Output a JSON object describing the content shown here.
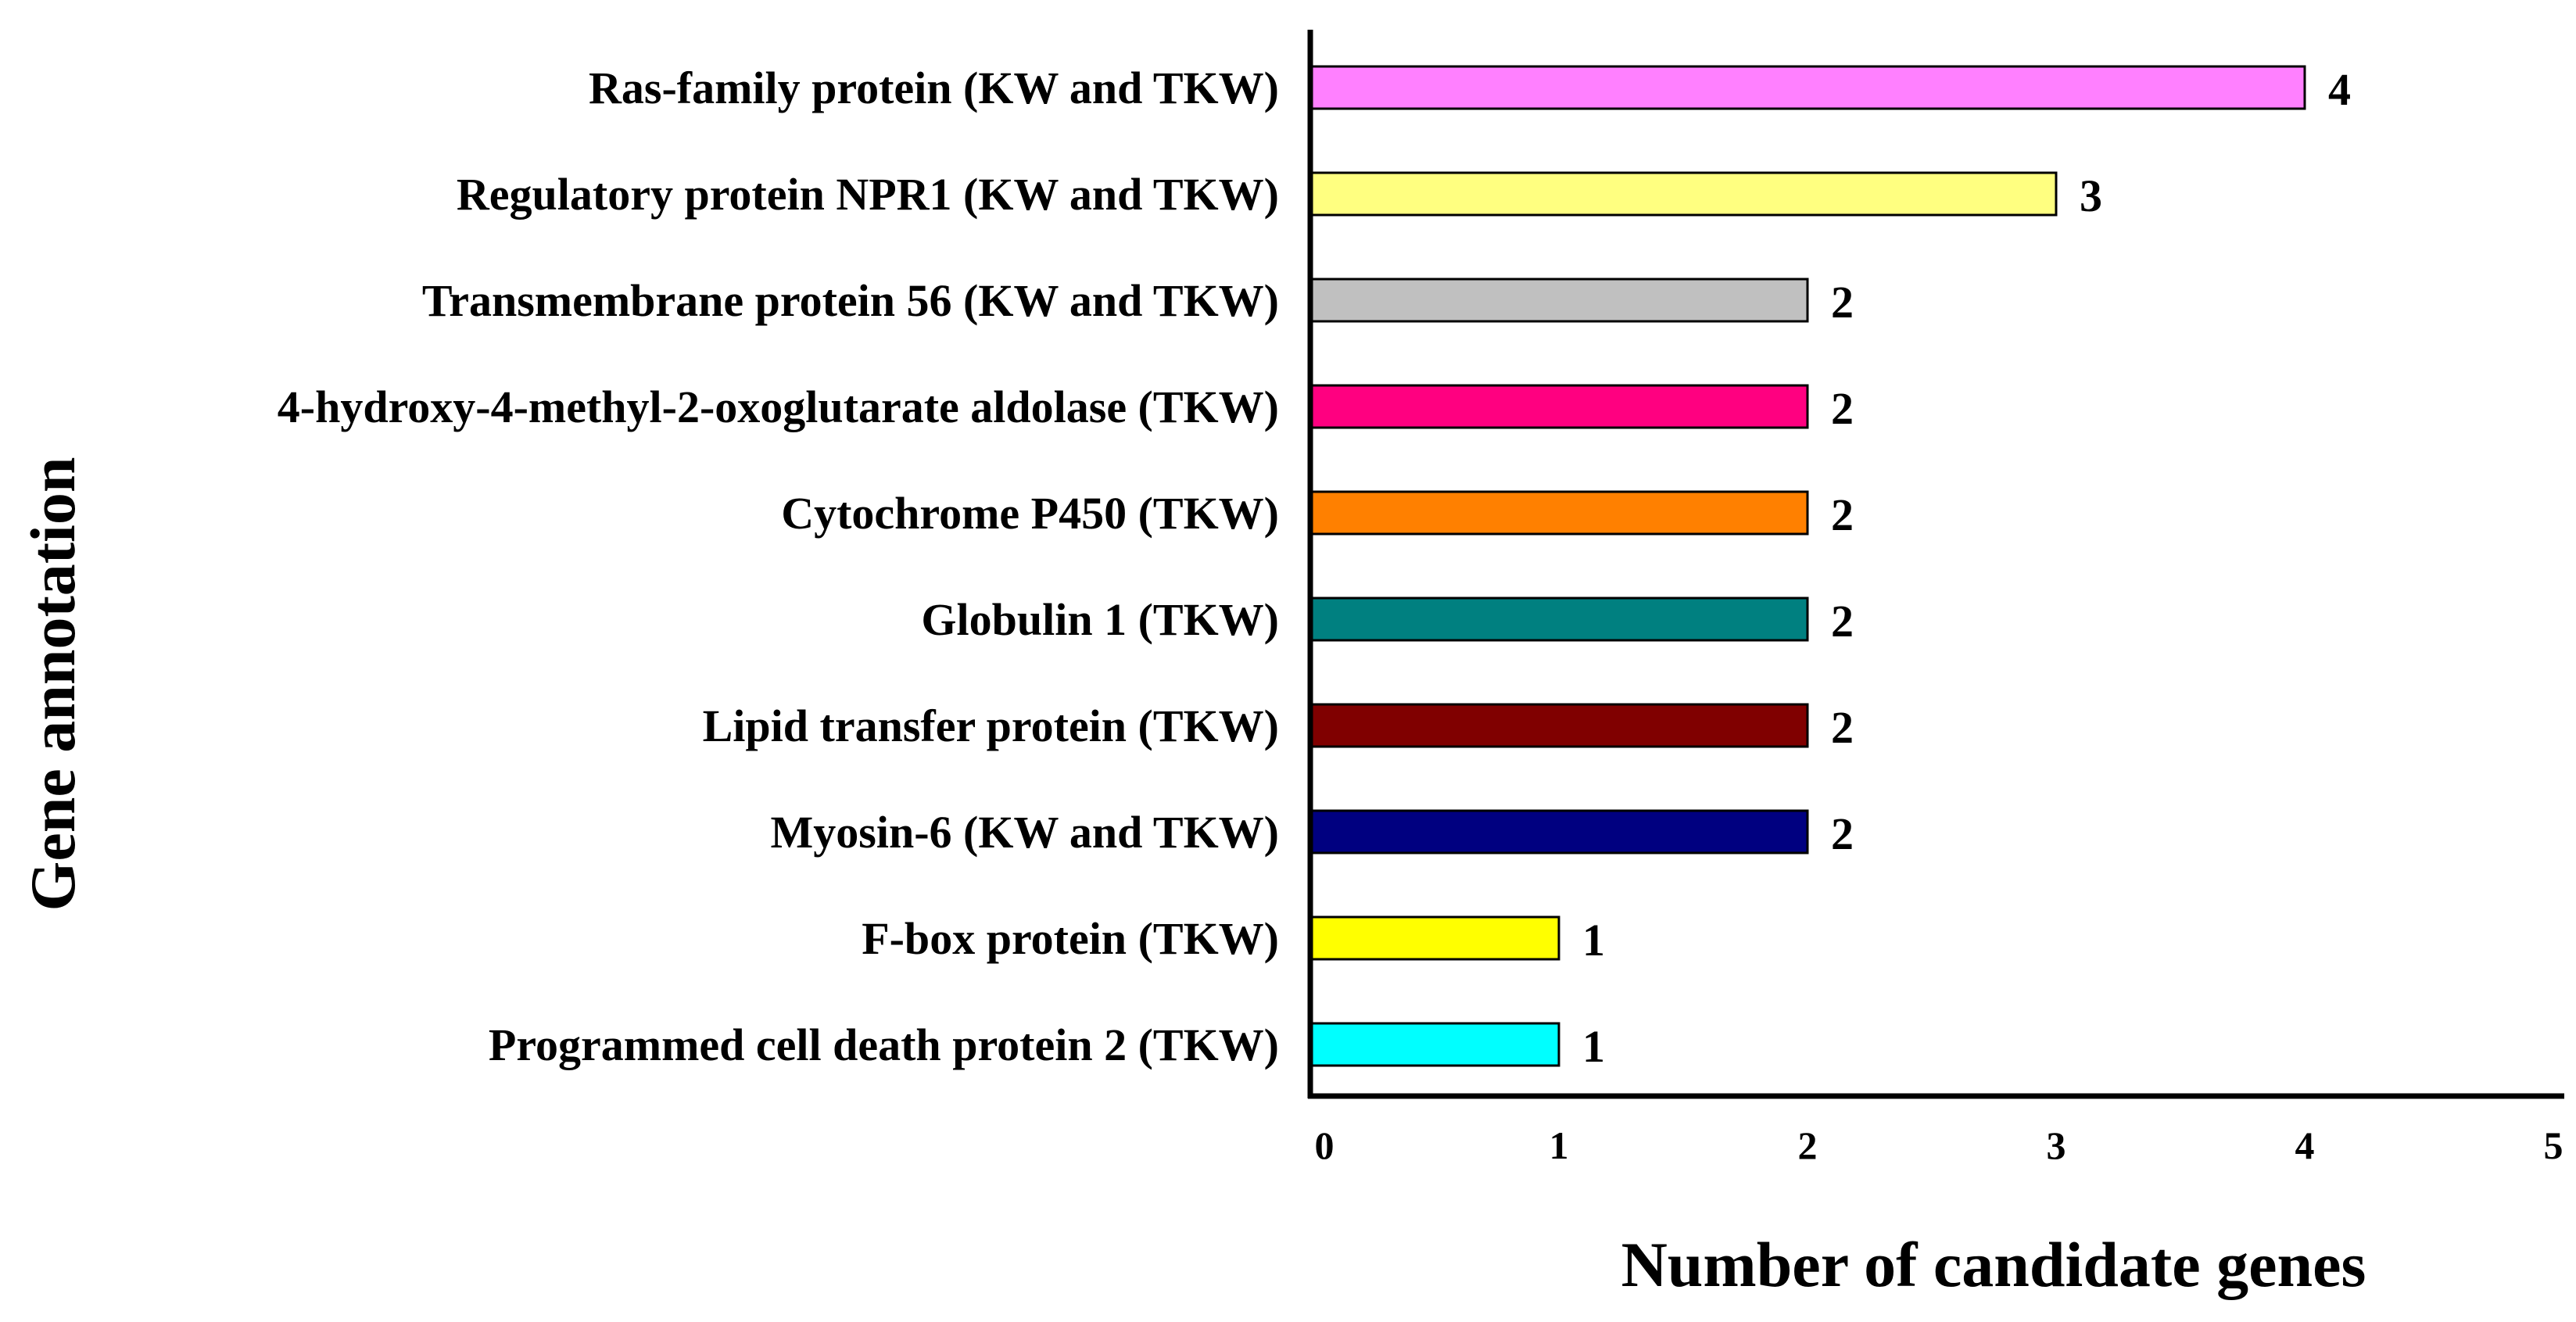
{
  "chart_data": {
    "type": "bar",
    "orientation": "horizontal",
    "title": "",
    "xlabel": "Number of candidate genes",
    "ylabel": "Gene annotation",
    "xlim": [
      0,
      5
    ],
    "xticks": [
      "0",
      "1",
      "2",
      "3",
      "4",
      "5"
    ],
    "grid": false,
    "legend": "none",
    "bars": [
      {
        "category": "Ras-family protein (KW and TKW)",
        "value": 4,
        "label": "4",
        "color": "#FF80FF"
      },
      {
        "category": "Regulatory protein NPR1 (KW and TKW)",
        "value": 3,
        "label": "3",
        "color": "#FFFF80"
      },
      {
        "category": "Transmembrane protein 56 (KW and TKW)",
        "value": 2,
        "label": "2",
        "color": "#C0C0C0"
      },
      {
        "category": "4-hydroxy-4-methyl-2-oxoglutarate aldolase (TKW)",
        "value": 2,
        "label": "2",
        "color": "#FF0080"
      },
      {
        "category": "Cytochrome P450 (TKW)",
        "value": 2,
        "label": "2",
        "color": "#FF8000"
      },
      {
        "category": "Globulin 1 (TKW)",
        "value": 2,
        "label": "2",
        "color": "#008080"
      },
      {
        "category": "Lipid transfer protein (TKW)",
        "value": 2,
        "label": "2",
        "color": "#800000"
      },
      {
        "category": "Myosin-6 (KW and TKW)",
        "value": 2,
        "label": "2",
        "color": "#000080"
      },
      {
        "category": "F-box protein (TKW)",
        "value": 1,
        "label": "1",
        "color": "#FFFF00"
      },
      {
        "category": "Programmed cell death protein 2 (TKW)",
        "value": 1,
        "label": "1",
        "color": "#00FFFF"
      }
    ]
  }
}
